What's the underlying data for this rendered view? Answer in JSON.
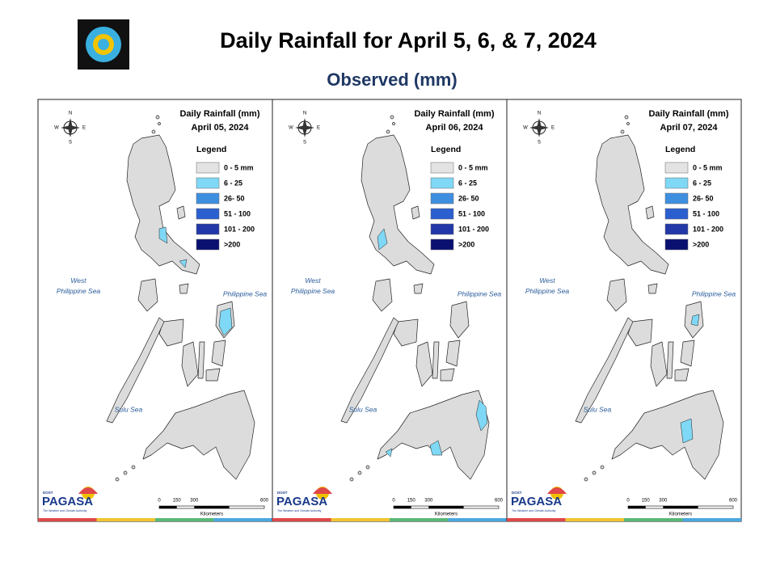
{
  "header": {
    "title": "Daily Rainfall for April 5, 6, & 7, 2024",
    "subtitle": "Observed (mm)"
  },
  "legend": {
    "title": "Legend",
    "items": [
      {
        "label": "0 - 5 mm",
        "color": "#e3e3e3"
      },
      {
        "label": "6 - 25",
        "color": "#7fd8f5"
      },
      {
        "label": "26- 50",
        "color": "#3f8fe0"
      },
      {
        "label": "51 - 100",
        "color": "#2b5fd0"
      },
      {
        "label": "101 - 200",
        "color": "#2238a8"
      },
      {
        "label": ">200",
        "color": "#0a1070"
      }
    ]
  },
  "panels": [
    {
      "heading": "Daily Rainfall (mm)",
      "date": "April 05, 2024"
    },
    {
      "heading": "Daily Rainfall (mm)",
      "date": "April 06, 2024"
    },
    {
      "heading": "Daily Rainfall (mm)",
      "date": "April 07, 2024"
    }
  ],
  "seas": [
    "West Philippine Sea",
    "Philippine Sea",
    "Sulu Sea"
  ],
  "compass": [
    "N",
    "E",
    "S",
    "W"
  ],
  "scale": {
    "ticks": [
      "0",
      "150",
      "300",
      "600"
    ],
    "unit": "Kilometers"
  },
  "logo": {
    "agency": "PAGASA",
    "dept": "DOST",
    "tagline": "The Weather and Climate Authority"
  }
}
